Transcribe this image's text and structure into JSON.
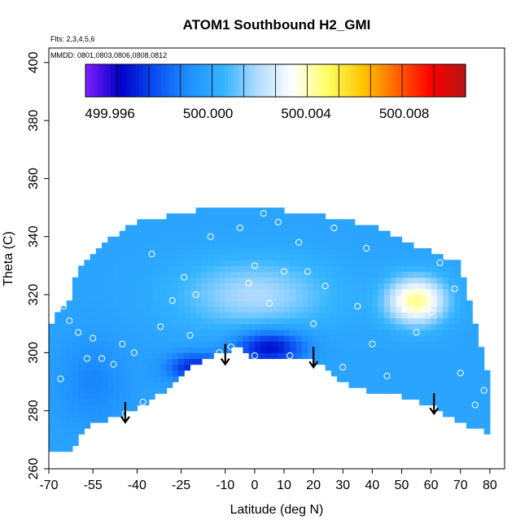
{
  "chart_data": {
    "type": "heatmap",
    "title": "ATOM1 Southbound H2_GMI",
    "annotations": [
      "Flts: 2,3,4,5,6",
      "MMDD: 0801,0803,0806,0808,0812"
    ],
    "xlabel": "Latitude (deg N)",
    "ylabel": "Theta (C)",
    "xlim": [
      -70,
      85
    ],
    "ylim": [
      260,
      405
    ],
    "x_ticks": [
      -70,
      -55,
      -40,
      -25,
      -10,
      0,
      10,
      20,
      30,
      40,
      50,
      60,
      70,
      80
    ],
    "y_ticks": [
      260,
      280,
      300,
      320,
      340,
      360,
      380,
      400
    ],
    "colorbar": {
      "min": 499.995,
      "max": 500.0105,
      "tick_values": [
        499.996,
        500.0,
        500.004,
        500.008
      ],
      "tick_labels": [
        "499.996",
        "500.000",
        "500.004",
        "500.008"
      ],
      "colors": [
        "#7f1fff",
        "#0000c8",
        "#0a4cf0",
        "#1e90ff",
        "#34b4ff",
        "#b4dcff",
        "#ffffff",
        "#ffff64",
        "#ffc800",
        "#ff6400",
        "#ff0000",
        "#b41414"
      ]
    },
    "field_envelope": {
      "lat": [
        -69,
        -63,
        -60,
        -55,
        -50,
        -45,
        -40,
        -35,
        -30,
        -25,
        -20,
        -15,
        -10,
        -5,
        0,
        5,
        10,
        15,
        20,
        25,
        30,
        40,
        50,
        60,
        70,
        79
      ],
      "theta_bottom": [
        266,
        266,
        270,
        276,
        277,
        278,
        281,
        284,
        287,
        292,
        296,
        299,
        300,
        302,
        298,
        298,
        299,
        298,
        297,
        294,
        290,
        286,
        285,
        282,
        276,
        273
      ],
      "theta_top": [
        310,
        318,
        328,
        334,
        338,
        341,
        344,
        345,
        346,
        347,
        348,
        349,
        349,
        350,
        350,
        349,
        348,
        347,
        347,
        346,
        345,
        343,
        338,
        334,
        330,
        293
      ]
    },
    "blobs": [
      {
        "lat": 5,
        "theta": 302,
        "value": 499.9965,
        "spread_lat": 12,
        "spread_theta": 6
      },
      {
        "lat": -20,
        "theta": 295,
        "value": 499.997,
        "spread_lat": 10,
        "spread_theta": 5
      },
      {
        "lat": 0,
        "theta": 320,
        "value": 500.002,
        "spread_lat": 25,
        "spread_theta": 12
      },
      {
        "lat": 55,
        "theta": 318,
        "value": 500.0045,
        "spread_lat": 10,
        "spread_theta": 8
      },
      {
        "lat": -55,
        "theta": 290,
        "value": 499.999,
        "spread_lat": 12,
        "spread_theta": 15
      }
    ],
    "obs_points": [
      {
        "lat": -66,
        "theta": 291
      },
      {
        "lat": -65,
        "theta": 316
      },
      {
        "lat": -63,
        "theta": 311
      },
      {
        "lat": -60,
        "theta": 307
      },
      {
        "lat": -57,
        "theta": 298
      },
      {
        "lat": -55,
        "theta": 305
      },
      {
        "lat": -52,
        "theta": 298
      },
      {
        "lat": -48,
        "theta": 296
      },
      {
        "lat": -45,
        "theta": 303
      },
      {
        "lat": -44,
        "theta": 279
      },
      {
        "lat": -41,
        "theta": 300
      },
      {
        "lat": -38,
        "theta": 283
      },
      {
        "lat": -35,
        "theta": 334
      },
      {
        "lat": -32,
        "theta": 309
      },
      {
        "lat": -28,
        "theta": 318
      },
      {
        "lat": -24,
        "theta": 326
      },
      {
        "lat": -22,
        "theta": 306
      },
      {
        "lat": -20,
        "theta": 320
      },
      {
        "lat": -15,
        "theta": 340
      },
      {
        "lat": -12,
        "theta": 300
      },
      {
        "lat": -8,
        "theta": 302
      },
      {
        "lat": -5,
        "theta": 343
      },
      {
        "lat": -2,
        "theta": 324
      },
      {
        "lat": 0,
        "theta": 330
      },
      {
        "lat": 0,
        "theta": 299
      },
      {
        "lat": 3,
        "theta": 348
      },
      {
        "lat": 5,
        "theta": 317
      },
      {
        "lat": 8,
        "theta": 345
      },
      {
        "lat": 10,
        "theta": 328
      },
      {
        "lat": 12,
        "theta": 299
      },
      {
        "lat": 15,
        "theta": 338
      },
      {
        "lat": 18,
        "theta": 328
      },
      {
        "lat": 20,
        "theta": 310
      },
      {
        "lat": 24,
        "theta": 323
      },
      {
        "lat": 27,
        "theta": 343
      },
      {
        "lat": 30,
        "theta": 295
      },
      {
        "lat": 35,
        "theta": 316
      },
      {
        "lat": 38,
        "theta": 336
      },
      {
        "lat": 40,
        "theta": 303
      },
      {
        "lat": 45,
        "theta": 292
      },
      {
        "lat": 50,
        "theta": 318
      },
      {
        "lat": 52,
        "theta": 341
      },
      {
        "lat": 55,
        "theta": 307
      },
      {
        "lat": 60,
        "theta": 314
      },
      {
        "lat": 63,
        "theta": 331
      },
      {
        "lat": 68,
        "theta": 322
      },
      {
        "lat": 70,
        "theta": 293
      },
      {
        "lat": 75,
        "theta": 282
      },
      {
        "lat": 78,
        "theta": 287
      }
    ],
    "arrows": [
      {
        "lat": -44,
        "theta_start": 283,
        "theta_end": 276
      },
      {
        "lat": -10,
        "theta_start": 303,
        "theta_end": 296
      },
      {
        "lat": 20,
        "theta_start": 302,
        "theta_end": 295
      },
      {
        "lat": 61,
        "theta_start": 286,
        "theta_end": 279
      }
    ]
  }
}
